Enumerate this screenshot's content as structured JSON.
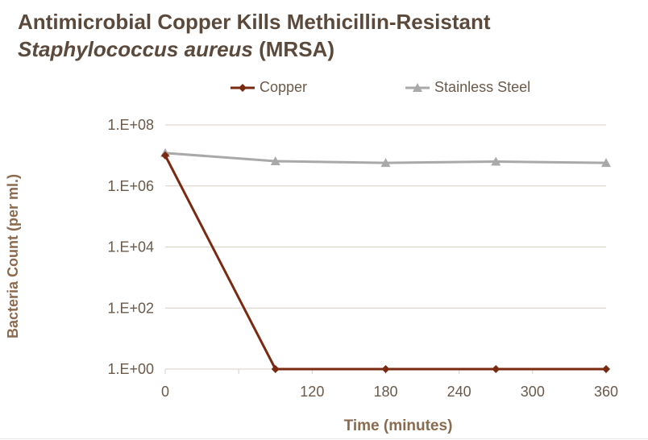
{
  "chart_data": {
    "type": "line",
    "title_line1": "Antimicrobial Copper Kills Methicillin-Resistant",
    "title_line2_italic": "Staphylococcus aureus",
    "title_line2_rest": " (MRSA)",
    "xlabel": "Time (minutes)",
    "ylabel": "Bacteria Count (per ml.)",
    "y_scale": "log",
    "ylim": [
      1,
      100000000
    ],
    "xlim": [
      0,
      360
    ],
    "y_ticks": [
      {
        "value": 1,
        "label": "1.E+00"
      },
      {
        "value": 100,
        "label": "1.E+02"
      },
      {
        "value": 10000,
        "label": "1.E+04"
      },
      {
        "value": 1000000,
        "label": "1.E+06"
      },
      {
        "value": 100000000,
        "label": "1.E+08"
      }
    ],
    "x_ticks": [
      {
        "value": 0,
        "label": "0"
      },
      {
        "value": 120,
        "label": "120"
      },
      {
        "value": 180,
        "label": "180"
      },
      {
        "value": 240,
        "label": "240"
      },
      {
        "value": 300,
        "label": "300"
      },
      {
        "value": 360,
        "label": "360"
      }
    ],
    "grid": true,
    "legend_position": "top",
    "series": [
      {
        "name": "Copper",
        "color": "#7b2a12",
        "marker": "diamond",
        "x": [
          0,
          90,
          180,
          270,
          360
        ],
        "values": [
          10000000,
          1,
          1,
          1,
          1
        ]
      },
      {
        "name": "Stainless Steel",
        "color": "#a9a9a9",
        "marker": "triangle",
        "x": [
          0,
          90,
          180,
          270,
          360
        ],
        "values": [
          12000000,
          6500000,
          5700000,
          6300000,
          5700000
        ]
      }
    ]
  }
}
